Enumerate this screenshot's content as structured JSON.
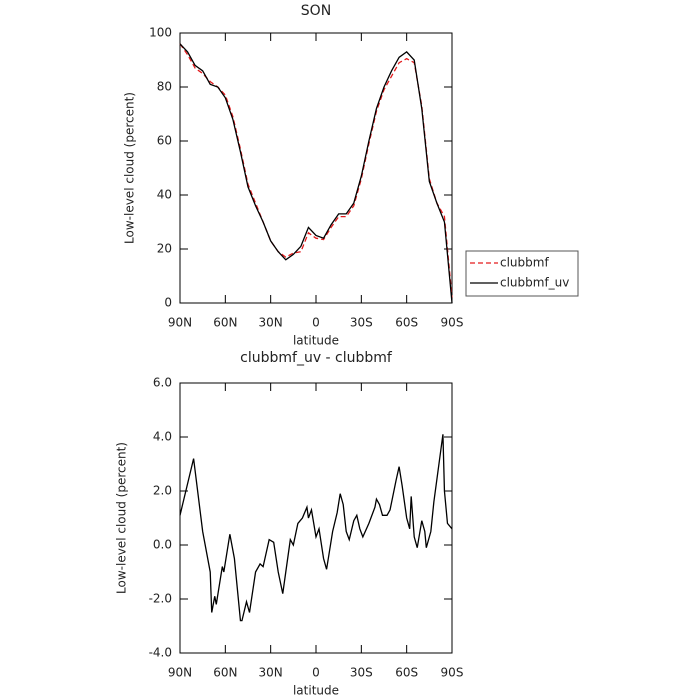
{
  "chart_data": [
    {
      "type": "line",
      "title": "SON",
      "x_label": "latitude",
      "y_label": "Low-level cloud (percent)",
      "x": [
        90,
        85,
        80,
        75,
        70,
        65,
        60,
        55,
        50,
        45,
        40,
        35,
        30,
        25,
        20,
        15,
        10,
        5,
        0,
        -5,
        -10,
        -15,
        -20,
        -25,
        -30,
        -35,
        -40,
        -45,
        -50,
        -55,
        -60,
        -65,
        -70,
        -75,
        -80,
        -85,
        -90
      ],
      "series": [
        {
          "name": "clubbmf",
          "color": "#e31a1c",
          "dashed": true,
          "values": [
            96,
            92,
            87,
            85,
            82,
            80,
            77,
            69,
            57,
            44,
            37,
            30,
            23,
            19,
            17,
            18.5,
            19,
            26,
            24,
            23.5,
            28,
            32,
            32,
            36,
            46,
            59,
            71,
            79,
            84,
            89,
            90.5,
            89,
            73,
            46,
            37,
            32,
            2
          ]
        },
        {
          "name": "clubbmf_uv",
          "color": "#000000",
          "dashed": false,
          "values": [
            96,
            93,
            88,
            86,
            81,
            80,
            76,
            68,
            56,
            43,
            36,
            30,
            23,
            19,
            16,
            18,
            21,
            28,
            25,
            24,
            29,
            33,
            33,
            37,
            47,
            60,
            72,
            80,
            86,
            91,
            93,
            90,
            72,
            45,
            37,
            30,
            0
          ]
        }
      ],
      "xlim": [
        90,
        -90
      ],
      "xticks": [
        {
          "value": 90,
          "label": "90N"
        },
        {
          "value": 60,
          "label": "60N"
        },
        {
          "value": 30,
          "label": "30N"
        },
        0,
        {
          "value": -30,
          "label": "30S"
        },
        {
          "value": -60,
          "label": "60S"
        },
        {
          "value": -90,
          "label": "90S"
        }
      ],
      "ylim": [
        0,
        100
      ],
      "yticks": [
        0,
        20,
        40,
        60,
        80,
        100
      ],
      "legend": "outside right"
    },
    {
      "type": "line",
      "title": "clubbmf_uv - clubbmf",
      "x_label": "latitude",
      "y_label": "Low-level cloud (percent)",
      "x": [
        90,
        81,
        75,
        70,
        69,
        67,
        66,
        62,
        61,
        57,
        54,
        50,
        49,
        46,
        44,
        40,
        37,
        35,
        31,
        28,
        25,
        22,
        20,
        17,
        15,
        12,
        9,
        6,
        5,
        3,
        0,
        -2,
        -5,
        -7,
        -11,
        -14,
        -16,
        -18,
        -20,
        -22,
        -25,
        -27,
        -29,
        -31,
        -35,
        -39,
        -40,
        -42,
        -44,
        -47,
        -49,
        -53,
        -55,
        -57,
        -60,
        -62,
        -63,
        -65,
        -67,
        -70,
        -72,
        -73,
        -76,
        -78,
        -84,
        -85,
        -87,
        -90
      ],
      "values": [
        1.1,
        3.2,
        0.5,
        -1,
        -2.5,
        -1.9,
        -2.2,
        -0.8,
        -1,
        0.4,
        -0.5,
        -2.8,
        -2.8,
        -2.1,
        -2.5,
        -1,
        -0.7,
        -0.8,
        0.2,
        0.1,
        -1,
        -1.8,
        -1,
        0.2,
        0,
        0.8,
        1,
        1.4,
        1,
        1.3,
        0.3,
        0.6,
        -0.5,
        -0.9,
        0.5,
        1.2,
        1.9,
        1.5,
        0.5,
        0.2,
        0.9,
        1.1,
        0.6,
        0.3,
        0.8,
        1.4,
        1.7,
        1.5,
        1.1,
        1.1,
        1.3,
        2.4,
        2.9,
        2.2,
        1,
        0.6,
        1.8,
        0.3,
        -0.1,
        0.9,
        0.5,
        -0.1,
        0.5,
        1.6,
        4.1,
        2,
        0.8,
        0.6
      ],
      "color": "#000000",
      "xlim": [
        90,
        -90
      ],
      "xticks": [
        {
          "value": 90,
          "label": "90N"
        },
        {
          "value": 60,
          "label": "60N"
        },
        {
          "value": 30,
          "label": "30N"
        },
        0,
        {
          "value": -30,
          "label": "30S"
        },
        {
          "value": -60,
          "label": "60S"
        },
        {
          "value": -90,
          "label": "90S"
        }
      ],
      "ylim": [
        -4,
        6
      ],
      "yticks": [
        {
          "value": -4,
          "label": "-4.0"
        },
        {
          "value": -2,
          "label": "-2.0"
        },
        {
          "value": 0,
          "label": "0.0"
        },
        {
          "value": 2,
          "label": "2.0"
        },
        {
          "value": 4,
          "label": "4.0"
        },
        {
          "value": 6,
          "label": "6.0"
        }
      ]
    }
  ]
}
